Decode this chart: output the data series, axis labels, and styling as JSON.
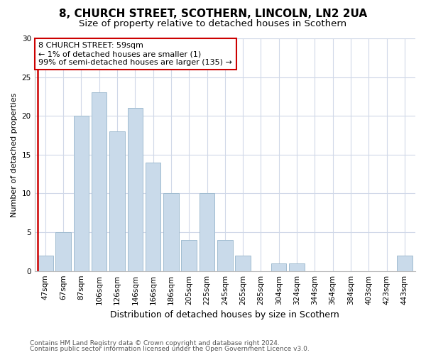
{
  "title1": "8, CHURCH STREET, SCOTHERN, LINCOLN, LN2 2UA",
  "title2": "Size of property relative to detached houses in Scothern",
  "xlabel": "Distribution of detached houses by size in Scothern",
  "ylabel": "Number of detached properties",
  "categories": [
    "47sqm",
    "67sqm",
    "87sqm",
    "106sqm",
    "126sqm",
    "146sqm",
    "166sqm",
    "186sqm",
    "205sqm",
    "225sqm",
    "245sqm",
    "265sqm",
    "285sqm",
    "304sqm",
    "324sqm",
    "344sqm",
    "364sqm",
    "384sqm",
    "403sqm",
    "423sqm",
    "443sqm"
  ],
  "values": [
    2,
    5,
    20,
    23,
    18,
    21,
    14,
    10,
    4,
    10,
    4,
    2,
    0,
    1,
    1,
    0,
    0,
    0,
    0,
    0,
    2
  ],
  "bar_color": "#c9daea",
  "bar_edge_color": "#a0bcd0",
  "highlight_line_color": "#cc0000",
  "annotation_text": "8 CHURCH STREET: 59sqm\n← 1% of detached houses are smaller (1)\n99% of semi-detached houses are larger (135) →",
  "annotation_box_color": "#ffffff",
  "annotation_box_edge_color": "#cc0000",
  "ylim": [
    0,
    30
  ],
  "yticks": [
    0,
    5,
    10,
    15,
    20,
    25,
    30
  ],
  "footer1": "Contains HM Land Registry data © Crown copyright and database right 2024.",
  "footer2": "Contains public sector information licensed under the Open Government Licence v3.0.",
  "bg_color": "#ffffff",
  "grid_color": "#d0d8e8",
  "title1_fontsize": 11,
  "title2_fontsize": 9.5,
  "xlabel_fontsize": 9,
  "ylabel_fontsize": 8,
  "tick_fontsize": 7.5,
  "annotation_fontsize": 8,
  "footer_fontsize": 6.5
}
